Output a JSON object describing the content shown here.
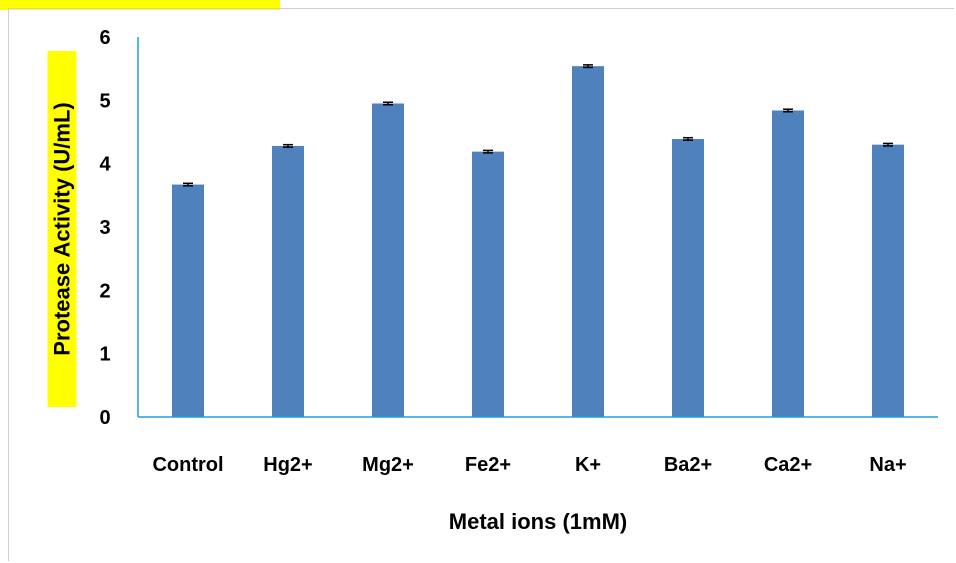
{
  "chart_data": {
    "type": "bar",
    "categories": [
      "Control",
      "Hg2+",
      "Mg2+",
      "Fe2+",
      "K+",
      "Ba2+",
      "Ca2+",
      "Na+"
    ],
    "values": [
      3.67,
      4.28,
      4.95,
      4.19,
      5.54,
      4.39,
      4.84,
      4.3
    ],
    "error": [
      0.02,
      0.02,
      0.02,
      0.02,
      0.02,
      0.02,
      0.02,
      0.02
    ],
    "xlabel": "Metal ions (1mM)",
    "ylabel": "Protease Activity (U/mL)",
    "ylim": [
      0,
      6
    ],
    "yticks": [
      0,
      1,
      2,
      3,
      4,
      5,
      6
    ],
    "grid": false,
    "legend": "none",
    "colors": {
      "bar": "#4f81bd",
      "axis": "#1fa0d8",
      "ylabel_highlight": "#ffff00",
      "error_bar": "#000000"
    }
  }
}
